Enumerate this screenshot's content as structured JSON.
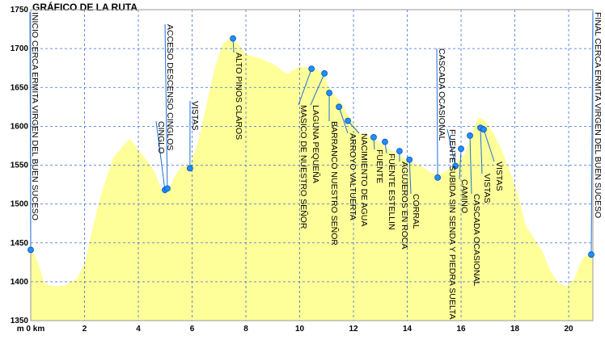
{
  "chart_data": {
    "type": "area",
    "title": "GRÁFICO DE LA RUTA",
    "color": "#ffff99",
    "marker_color": "#1e8fff",
    "grid": true,
    "x": [
      0,
      0.21,
      0.51,
      0.81,
      1.26,
      1.71,
      2.02,
      2.32,
      2.62,
      3.07,
      3.67,
      4.12,
      4.57,
      4.87,
      5.08,
      5.32,
      5.62,
      5.92,
      6.23,
      6.53,
      6.83,
      7.13,
      7.43,
      7.73,
      8.03,
      8.48,
      9.08,
      9.53,
      9.98,
      10.59,
      10.89,
      11.19,
      11.49,
      11.94,
      12.24,
      12.69,
      13.14,
      13.59,
      14.05,
      14.5,
      14.95,
      15.25,
      15.55,
      15.85,
      16.15,
      16.45,
      16.66,
      16.9,
      17.2,
      17.5,
      17.8,
      18.11,
      18.41,
      18.71,
      19.01,
      19.31,
      19.61,
      19.91,
      20.21,
      20.51,
      20.9
    ],
    "values": [
      1443,
      1430,
      1399,
      1394,
      1395,
      1404,
      1425,
      1472,
      1513,
      1560,
      1584,
      1565,
      1544,
      1518,
      1513,
      1534,
      1549,
      1549,
      1581,
      1627,
      1674,
      1705,
      1714,
      1705,
      1692,
      1688,
      1679,
      1667,
      1677,
      1674,
      1667,
      1643,
      1633,
      1607,
      1591,
      1586,
      1575,
      1565,
      1555,
      1549,
      1539,
      1539,
      1544,
      1555,
      1565,
      1596,
      1612,
      1607,
      1591,
      1570,
      1544,
      1513,
      1472,
      1456,
      1440,
      1414,
      1399,
      1394,
      1404,
      1430,
      1439
    ],
    "xlim": [
      0,
      20.9
    ],
    "ylim": [
      1350,
      1750
    ],
    "xticks": [
      {
        "value": 0,
        "label": "m 0 km"
      },
      2,
      4,
      6,
      8,
      10,
      12,
      14,
      16,
      18,
      20
    ],
    "yticks": [
      1350,
      1400,
      1450,
      1500,
      1550,
      1600,
      1650,
      1700,
      1750
    ],
    "annotations": [
      {
        "text": "INICIO CERCA ERMITA VIRGEN DEL BUEN SUCESO",
        "x": 0,
        "y": 1441
      },
      {
        "text": "CINGLO",
        "x": 4.99,
        "y": 1518
      },
      {
        "text": "ACCESO DESCENSO CINGLOS",
        "x": 5.08,
        "y": 1520
      },
      {
        "text": "VISTAS",
        "x": 5.92,
        "y": 1546
      },
      {
        "text": "ALTO PINOS CLAROS",
        "x": 7.52,
        "y": 1713
      },
      {
        "text": "MASICO DE NUESTRO SEÑOR",
        "x": 10.44,
        "y": 1674
      },
      {
        "text": "LAGUNA PEQUEÑA",
        "x": 10.92,
        "y": 1668
      },
      {
        "text": "BARRANCO NUESTRO SEÑOR",
        "x": 11.1,
        "y": 1643
      },
      {
        "text": "ARROYO VALTUERTA",
        "x": 11.46,
        "y": 1625
      },
      {
        "text": "NACIMIENTO DE AGUA",
        "x": 11.79,
        "y": 1607
      },
      {
        "text": "FUENTE",
        "x": 12.75,
        "y": 1586
      },
      {
        "text": "FUENTE ESTELLIN",
        "x": 13.17,
        "y": 1580
      },
      {
        "text": "AGUJEROS EN ROCA",
        "x": 13.71,
        "y": 1568
      },
      {
        "text": "CORRAL",
        "x": 14.08,
        "y": 1557
      },
      {
        "text": "CASCADA OCASIONAL",
        "x": 15.13,
        "y": 1534
      },
      {
        "text": "FUENTE SUBIDA SIN SENDA Y PIEDRA SUELTA",
        "x": 15.79,
        "y": 1549
      },
      {
        "text": "CAMINO",
        "x": 16.0,
        "y": 1571
      },
      {
        "text": "CASCADA OCASIONAL",
        "x": 16.33,
        "y": 1588
      },
      {
        "text": "VISTAS",
        "x": 16.72,
        "y": 1598
      },
      {
        "text": "VISTAS",
        "x": 16.84,
        "y": 1596
      },
      {
        "text": "FINAL CERCA ERMITA VIRGEN DEL BUEN SUCESO",
        "x": 20.84,
        "y": 1435
      }
    ]
  }
}
